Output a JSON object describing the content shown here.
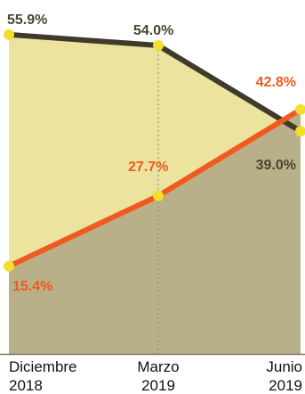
{
  "chart_data": {
    "type": "area",
    "categories": [
      [
        "Diciembre",
        "2018"
      ],
      [
        "Marzo",
        "2019"
      ],
      [
        "Junio",
        "2019"
      ]
    ],
    "series": [
      {
        "values": [
          55.9,
          54.0,
          39.0
        ],
        "labels": [
          "55.9%",
          "54.0%",
          "39.0%"
        ],
        "color": "#3f3a2c"
      },
      {
        "values": [
          15.4,
          27.7,
          42.8
        ],
        "labels": [
          "15.4%",
          "27.7%",
          "42.8%"
        ],
        "color": "#f05a1e"
      }
    ],
    "ylim": [
      0,
      60
    ],
    "grid": false,
    "legend": "none",
    "colors": {
      "upper_fill": "#ece39f",
      "lower_fill": "#b9b089",
      "marker": "#f2de2c",
      "baseline": "#7a7460"
    }
  }
}
